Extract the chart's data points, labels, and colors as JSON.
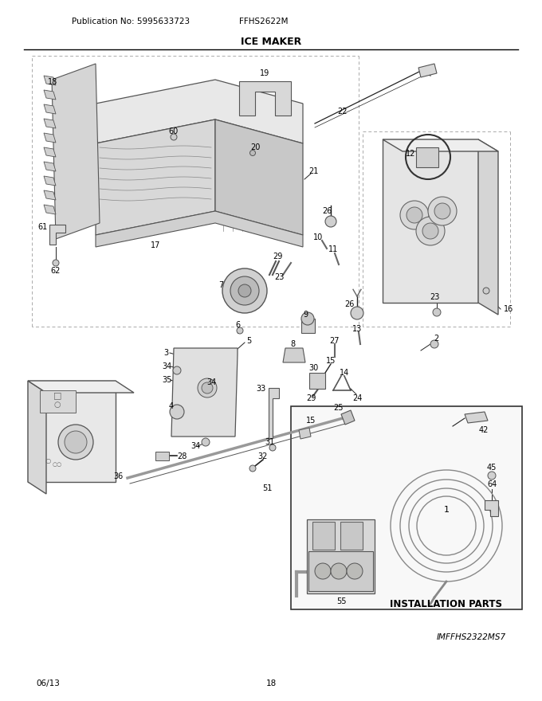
{
  "title": "ICE MAKER",
  "pub_no": "Publication No: 5995633723",
  "model": "FFHS2622M",
  "footer_left": "06/13",
  "footer_center": "18",
  "footer_right": "IMFFHS2322MS7",
  "install_label": "INSTALLATION PARTS",
  "background": "#ffffff",
  "figsize": [
    6.8,
    8.8
  ],
  "dpi": 100
}
